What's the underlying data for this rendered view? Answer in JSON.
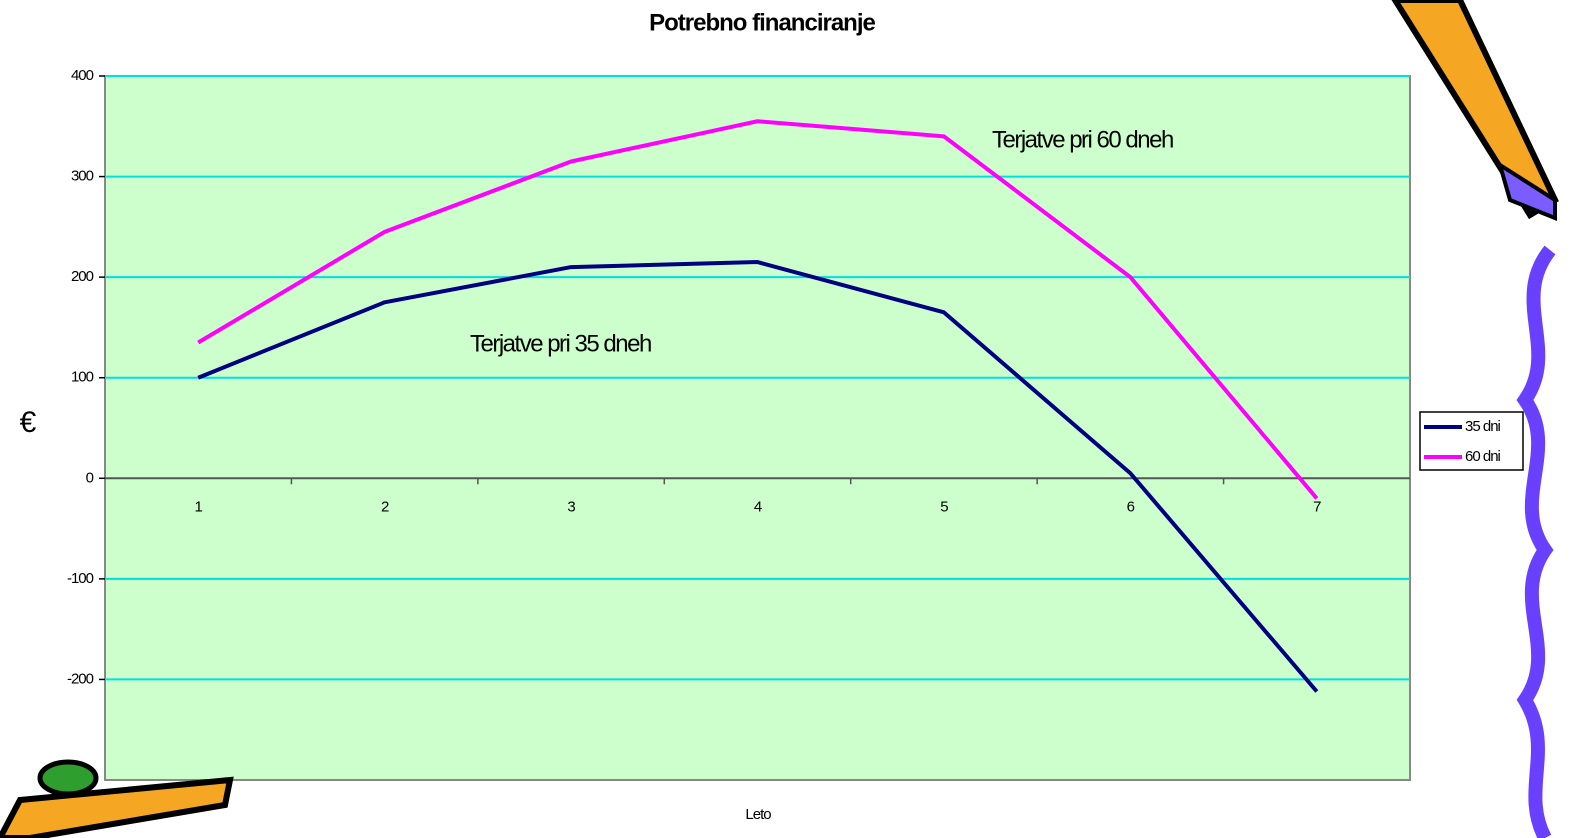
{
  "chart_data": {
    "type": "line",
    "title": "Potrebno financiranje",
    "x_label": "Leto",
    "y_label": "€",
    "categories": [
      "1",
      "2",
      "3",
      "4",
      "5",
      "6",
      "7"
    ],
    "series": [
      {
        "name": "35 dni",
        "color": "#000080",
        "values": [
          100,
          175,
          210,
          215,
          165,
          5,
          -212
        ]
      },
      {
        "name": "60 dni",
        "color": "#ff00ff",
        "values": [
          135,
          245,
          315,
          355,
          340,
          200,
          -20
        ]
      }
    ],
    "annotations": [
      "Terjatve pri 60 dneh",
      "Terjatve pri 35 dneh"
    ],
    "ylim": [
      -300,
      400
    ],
    "yticks": [
      -200,
      -100,
      0,
      100,
      200,
      300,
      400
    ],
    "grid": true,
    "legend": "right"
  }
}
